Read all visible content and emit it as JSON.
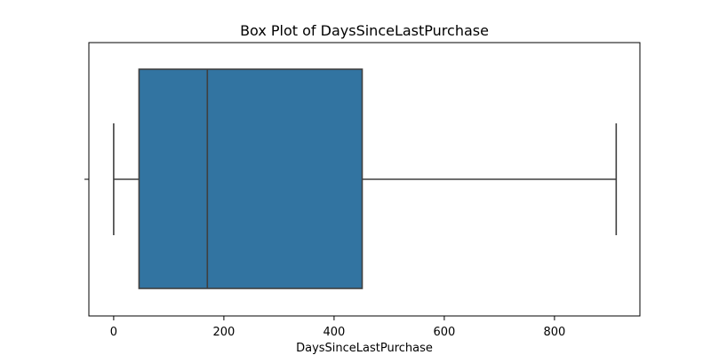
{
  "chart_data": {
    "type": "box",
    "title": "Box Plot of DaysSinceLastPurchase",
    "xlabel": "DaysSinceLastPurchase",
    "ylabel": "",
    "orientation": "horizontal",
    "xlim": [
      -45,
      955
    ],
    "xticks": [
      0,
      200,
      400,
      600,
      800
    ],
    "grid": false,
    "series": [
      {
        "whisker_low": 0,
        "q1": 46,
        "median": 170,
        "q3": 451,
        "whisker_high": 912
      }
    ],
    "colors": {
      "box_fill": "#3274a1",
      "box_line": "#3f3f3f",
      "axes": "#000000"
    }
  }
}
